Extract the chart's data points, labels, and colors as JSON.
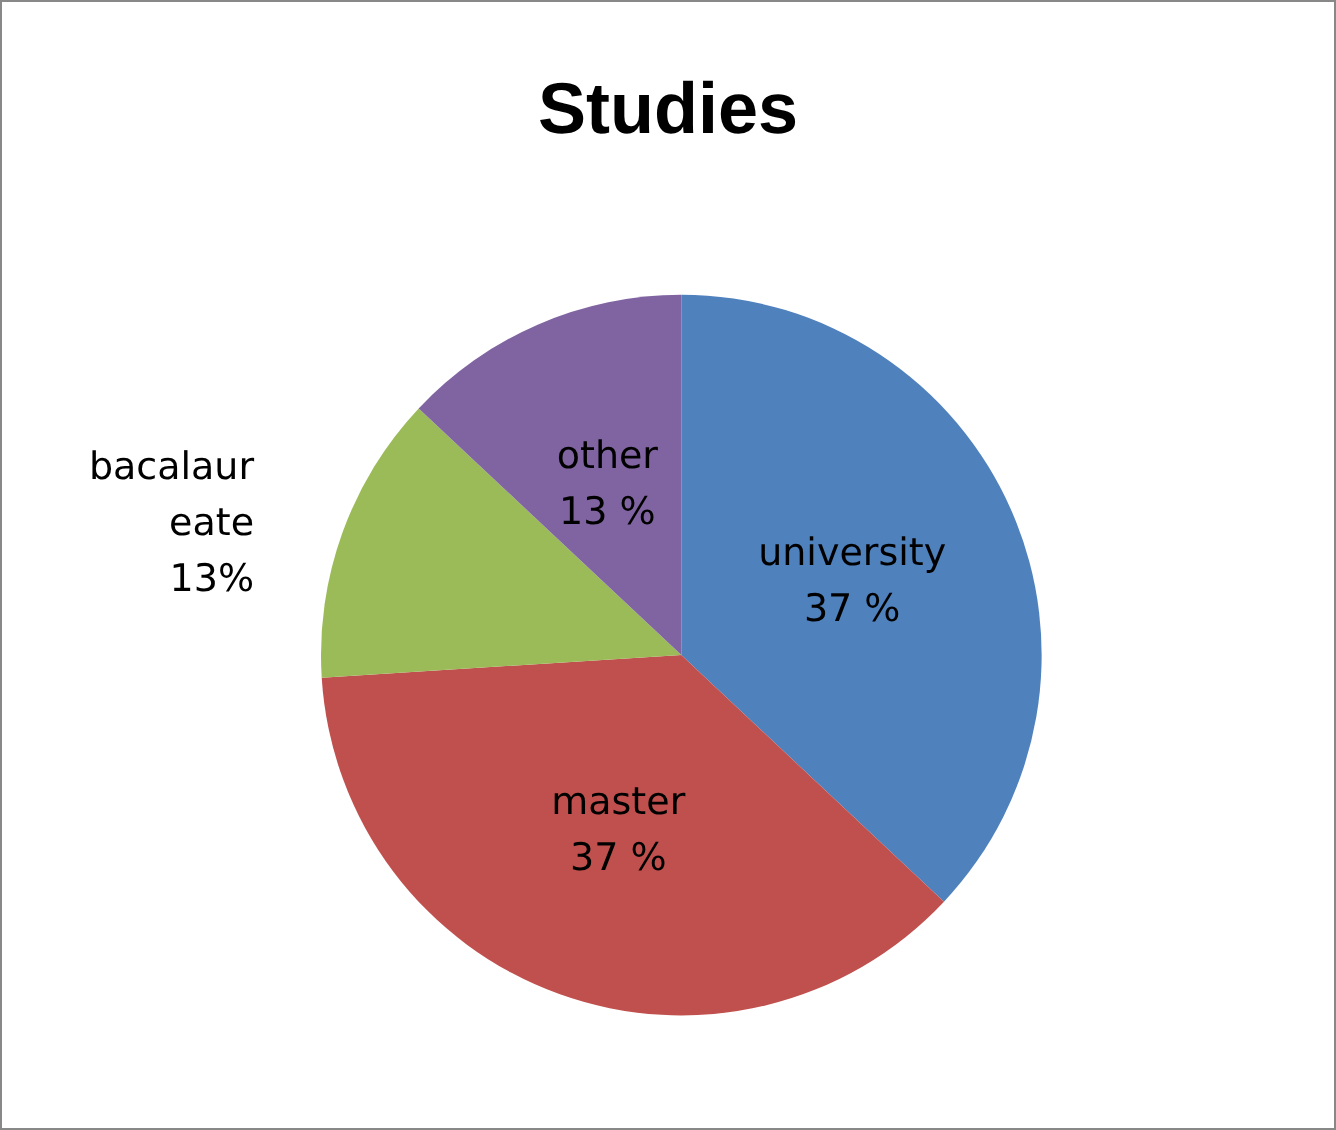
{
  "chart_data": {
    "type": "pie",
    "title": "Studies",
    "categories": [
      "university",
      "master",
      "bacalaureate",
      "other"
    ],
    "values": [
      37,
      37,
      13,
      13
    ],
    "value_labels": [
      "37 %",
      "37 %",
      "13%",
      "13 %"
    ],
    "colors": [
      "#4f81bd",
      "#c0504d",
      "#9bbb59",
      "#8064a2"
    ],
    "legend": false
  }
}
